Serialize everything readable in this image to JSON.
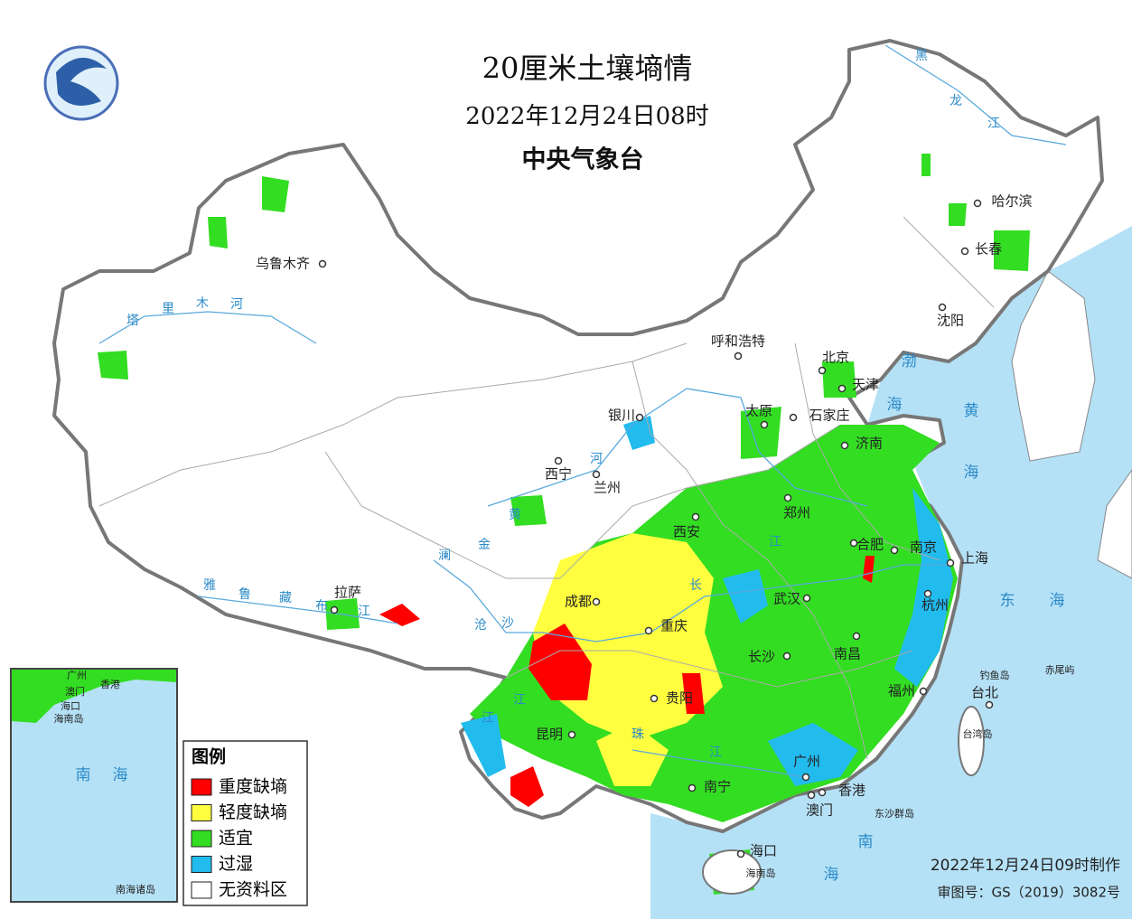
{
  "header": {
    "title": "20厘米土壤墒情",
    "time": "2022年12月24日08时",
    "issuer": "中央气象台"
  },
  "legend": {
    "title": "图例",
    "items": [
      {
        "label": "重度缺墒",
        "color": "#ff0000"
      },
      {
        "label": "轻度缺墒",
        "color": "#ffff40"
      },
      {
        "label": "适宜",
        "color": "#33dd22"
      },
      {
        "label": "过湿",
        "color": "#22bbee"
      },
      {
        "label": "无资料区",
        "color": "#ffffff"
      }
    ]
  },
  "footer": {
    "made": "2022年12月24日09时制作",
    "approval": "审图号：GS（2019）3082号"
  },
  "cities": [
    "乌鲁木齐",
    "哈尔滨",
    "长春",
    "沈阳",
    "北京",
    "天津",
    "呼和浩特",
    "银川",
    "太原",
    "石家庄",
    "济南",
    "西宁",
    "兰州",
    "郑州",
    "西安",
    "合肥",
    "南京",
    "上海",
    "成都",
    "重庆",
    "武汉",
    "杭州",
    "拉萨",
    "长沙",
    "南昌",
    "福州",
    "台北",
    "贵阳",
    "昆明",
    "广州",
    "香港",
    "澳门",
    "南宁",
    "海口"
  ],
  "places": [
    "钓鱼岛",
    "赤尾屿",
    "台湾岛",
    "东沙群岛",
    "海南岛"
  ],
  "seas": [
    [
      "渤",
      "海"
    ],
    [
      "黄",
      "海"
    ],
    [
      "东",
      "海"
    ],
    [
      "南",
      "海"
    ]
  ],
  "rivers": [
    [
      "塔",
      "里",
      "木",
      "河"
    ],
    [
      "黑",
      "龙",
      "江"
    ],
    [
      "黄",
      "河"
    ],
    [
      "雅",
      "鲁",
      "藏",
      "布",
      "江"
    ],
    [
      "澜",
      "沧",
      "江"
    ],
    [
      "金",
      "沙",
      "江"
    ],
    [
      "长",
      "江"
    ],
    [
      "珠",
      "江"
    ]
  ],
  "inset": {
    "labels": [
      "广州",
      "香港",
      "澳门",
      "海口",
      "海南岛",
      "南海诸岛"
    ],
    "sea": [
      "南",
      "海"
    ]
  }
}
